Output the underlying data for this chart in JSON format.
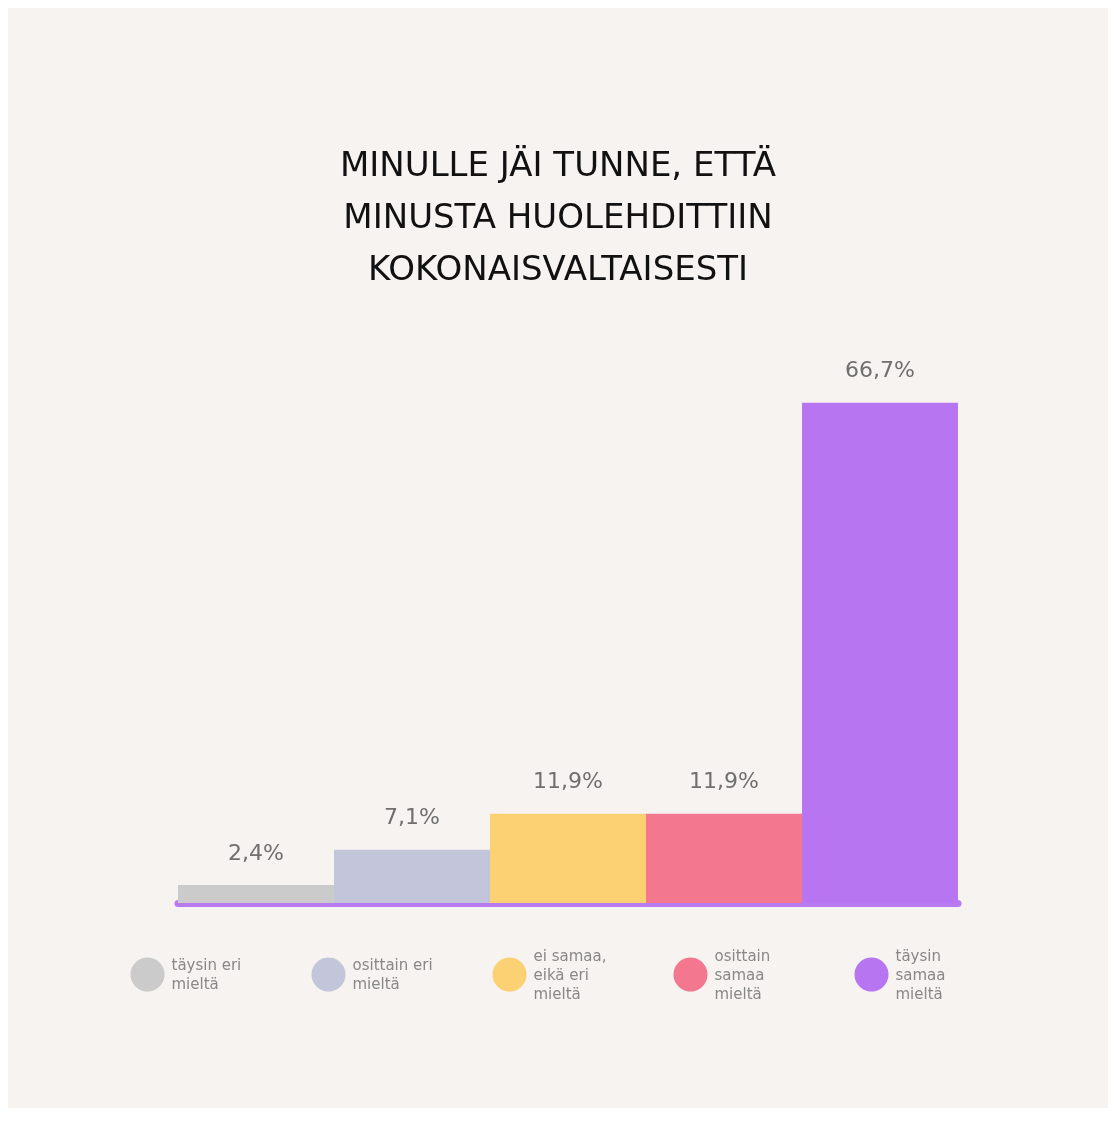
{
  "chart_data": {
    "type": "bar",
    "title": "MINULLE JÄI TUNNE, ETTÄ\nMINUSTA HUOLEHDITTIIN\nKOKONAISVALTAISESTI",
    "categories": [
      null,
      null,
      null,
      null,
      null
    ],
    "stacked": true,
    "series": [
      {
        "name": "täysin eri mieltä",
        "color": "#cbcbcb",
        "values": [
          2.4,
          null,
          null,
          null,
          null
        ],
        "value_labels": [
          "2,4%",
          null,
          null,
          null,
          null
        ]
      },
      {
        "name": "osittain eri mieltä",
        "color": "#c3c5db",
        "values": [
          null,
          7.1,
          null,
          null,
          null
        ],
        "value_labels": [
          null,
          "7,1%",
          null,
          null,
          null
        ]
      },
      {
        "name": "ei samaa, eikä eri mieltä",
        "color": "#fbd173",
        "values": [
          null,
          null,
          11.9,
          null,
          null
        ],
        "value_labels": [
          null,
          null,
          "11,9%",
          null,
          null
        ]
      },
      {
        "name": "osittain samaa mieltä",
        "color": "#f3778f",
        "values": [
          null,
          null,
          null,
          11.9,
          null
        ],
        "value_labels": [
          null,
          null,
          null,
          "11,9%",
          null
        ]
      },
      {
        "name": "täysin samaa mieltä",
        "color": "#b775f2",
        "values": [
          null,
          null,
          null,
          null,
          66.7
        ],
        "value_labels": [
          null,
          null,
          null,
          null,
          "66,7%"
        ]
      }
    ],
    "relative": false,
    "tick_labels": false,
    "legend": "bottom"
  }
}
